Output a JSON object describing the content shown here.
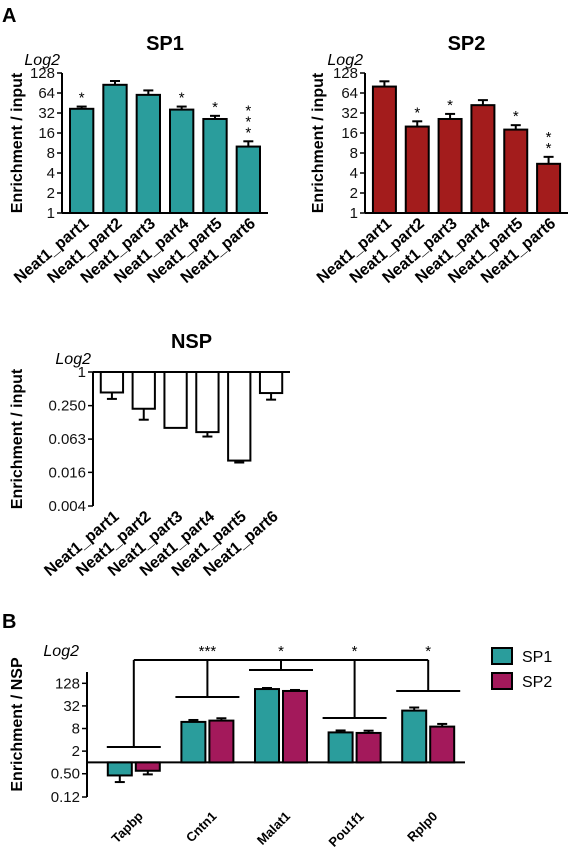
{
  "figure": {
    "panel_a": "A",
    "panel_b": "B"
  },
  "chart_data": [
    {
      "type": "bar",
      "title": "SP1",
      "scale_note": "Log2",
      "ylabel": "Enrichment / input",
      "xlabel": "",
      "yscale": "log2",
      "ylim": [
        1,
        128
      ],
      "yticks": [
        "128",
        "64",
        "32",
        "16",
        "8",
        "4",
        "2",
        "1"
      ],
      "categories": [
        "Neat1_part1",
        "Neat1_part2",
        "Neat1_part3",
        "Neat1_part4",
        "Neat1_part5",
        "Neat1_part6"
      ],
      "values": [
        37,
        85,
        60,
        36,
        26,
        10
      ],
      "errors": [
        3,
        12,
        10,
        4,
        3,
        2
      ],
      "significance": [
        "*",
        "",
        "",
        "*",
        "*",
        "***"
      ],
      "color": "#2a9d9c",
      "grid": false
    },
    {
      "type": "bar",
      "title": "SP2",
      "scale_note": "Log2",
      "ylabel": "Enrichment / input",
      "xlabel": "",
      "yscale": "log2",
      "ylim": [
        1,
        128
      ],
      "yticks": [
        "128",
        "64",
        "32",
        "16",
        "8",
        "4",
        "2",
        "1"
      ],
      "categories": [
        "Neat1_part1",
        "Neat1_part2",
        "Neat1_part3",
        "Neat1_part4",
        "Neat1_part5",
        "Neat1_part6"
      ],
      "values": [
        80,
        20,
        26,
        42,
        18,
        5.5
      ],
      "errors": [
        16,
        4,
        5,
        8,
        3,
        1.5
      ],
      "significance": [
        "",
        "*",
        "*",
        "",
        "*",
        "**"
      ],
      "color": "#a31c1c",
      "grid": false
    },
    {
      "type": "bar",
      "title": "NSP",
      "scale_note": "Log2",
      "ylabel": "Enrichment / input",
      "xlabel": "",
      "yscale": "log2",
      "ylim": [
        0.004,
        1
      ],
      "yticks": [
        "1",
        "0.250",
        "0.063",
        "0.016",
        "0.004"
      ],
      "categories": [
        "Neat1_part1",
        "Neat1_part2",
        "Neat1_part3",
        "Neat1_part4",
        "Neat1_part5",
        "Neat1_part6"
      ],
      "values": [
        0.43,
        0.22,
        0.1,
        0.084,
        0.026,
        0.42
      ],
      "errors": [
        0.1,
        0.08,
        0,
        0.014,
        0.002,
        0.1
      ],
      "color": "#ffffff",
      "grid": false
    },
    {
      "type": "bar",
      "title": "",
      "scale_note": "Log2",
      "ylabel": "Enrichment / NSP",
      "xlabel": "",
      "yscale": "log2",
      "ylim": [
        0.12,
        256
      ],
      "yticks": [
        "128",
        "32",
        "8",
        "2",
        "0.50",
        "0.12"
      ],
      "baseline": 1,
      "categories": [
        "Tapbp",
        "Cntn1",
        "Malat1",
        "Pou1f1",
        "Rplp0"
      ],
      "series": [
        {
          "name": "SP1",
          "color": "#2a9d9c",
          "values": [
            0.45,
            12,
            90,
            6.3,
            24
          ],
          "errors": [
            0.15,
            1.5,
            6,
            0.8,
            5
          ]
        },
        {
          "name": "SP2",
          "color": "#a3195b",
          "values": [
            0.6,
            13,
            80,
            6.1,
            9
          ],
          "errors": [
            0.12,
            2,
            5,
            0.9,
            1.6
          ]
        }
      ],
      "comparisons": [
        {
          "from": "Tapbp",
          "to": "Cntn1",
          "label": "***"
        },
        {
          "from": "Tapbp",
          "to": "Malat1",
          "label": "*"
        },
        {
          "from": "Tapbp",
          "to": "Pou1f1",
          "label": "*"
        },
        {
          "from": "Tapbp",
          "to": "Rplp0",
          "label": "*"
        }
      ],
      "legend": {
        "position": "right",
        "entries": [
          "SP1",
          "SP2"
        ]
      },
      "grid": false
    }
  ]
}
